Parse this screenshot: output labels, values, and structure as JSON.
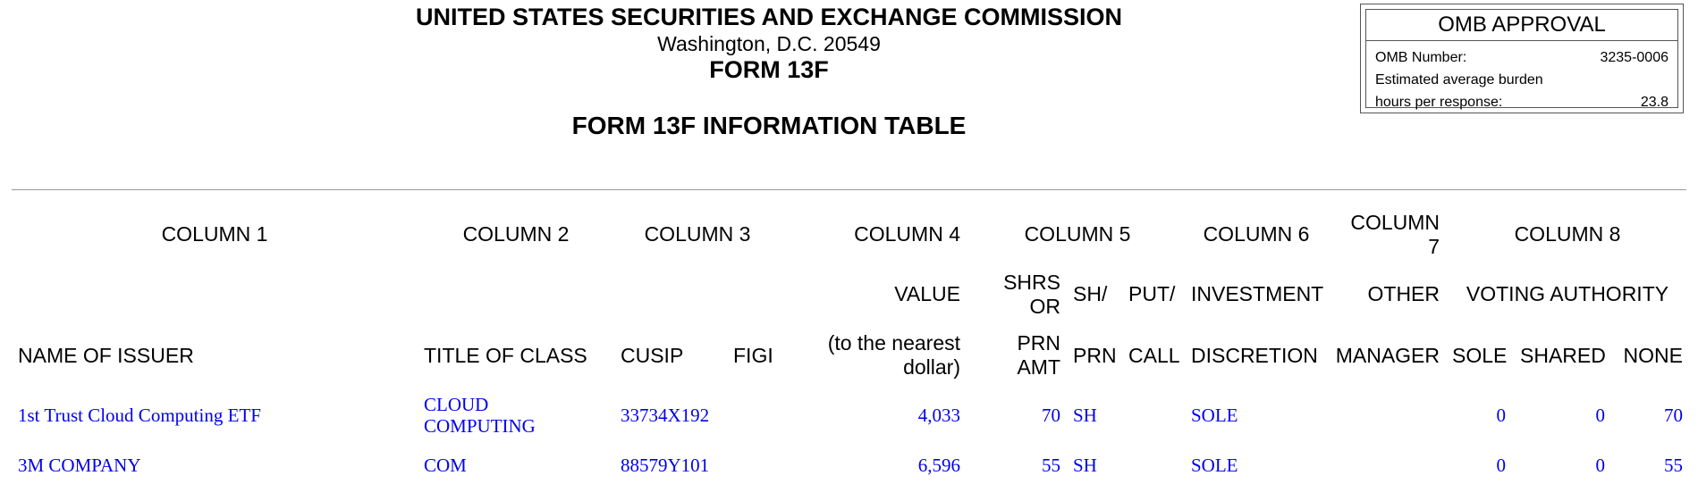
{
  "header": {
    "agency": "UNITED STATES SECURITIES AND EXCHANGE COMMISSION",
    "address": "Washington, D.C. 20549",
    "form": "FORM 13F",
    "table_title": "FORM 13F INFORMATION TABLE"
  },
  "omb": {
    "title": "OMB APPROVAL",
    "number_label": "OMB Number:",
    "number_value": "3235-0006",
    "burden_label_1": "Estimated average burden",
    "burden_label_2": "hours per response:",
    "burden_value": "23.8"
  },
  "columns": {
    "col1": "COLUMN 1",
    "col2": "COLUMN 2",
    "col3": "COLUMN 3",
    "col4": "COLUMN 4",
    "col5": "COLUMN 5",
    "col6": "COLUMN 6",
    "col7_line1": "COLUMN",
    "col7_line2": "7",
    "col8": "COLUMN 8"
  },
  "subheaders": {
    "value": "VALUE",
    "shrs_or": "SHRS OR",
    "sh": "SH/",
    "put": "PUT/",
    "investment": "INVESTMENT",
    "other": "OTHER",
    "voting_authority": "VOTING AUTHORITY",
    "name_of_issuer": "NAME OF ISSUER",
    "title_of_class": "TITLE OF CLASS",
    "cusip": "CUSIP",
    "figi": "FIGI",
    "nearest_dollar": "(to the nearest dollar)",
    "prn_amt": "PRN AMT",
    "prn": "PRN",
    "call": "CALL",
    "discretion": "DISCRETION",
    "manager": "MANAGER",
    "sole": "SOLE",
    "shared": "SHARED",
    "none": "NONE"
  },
  "rows": [
    {
      "issuer": "1st Trust Cloud Computing ETF",
      "title_line1": "CLOUD",
      "title_line2": "COMPUTING",
      "cusip": "33734X192",
      "figi": "",
      "value": "4,033",
      "shrs": "70",
      "sh_prn": "SH",
      "put_call": "",
      "discretion": "SOLE",
      "manager": "",
      "sole": "0",
      "shared": "0",
      "none": "70"
    },
    {
      "issuer": "3M COMPANY",
      "title_line1": "COM",
      "title_line2": "",
      "cusip": "88579Y101",
      "figi": "",
      "value": "6,596",
      "shrs": "55",
      "sh_prn": "SH",
      "put_call": "",
      "discretion": "SOLE",
      "manager": "",
      "sole": "0",
      "shared": "0",
      "none": "55"
    }
  ]
}
